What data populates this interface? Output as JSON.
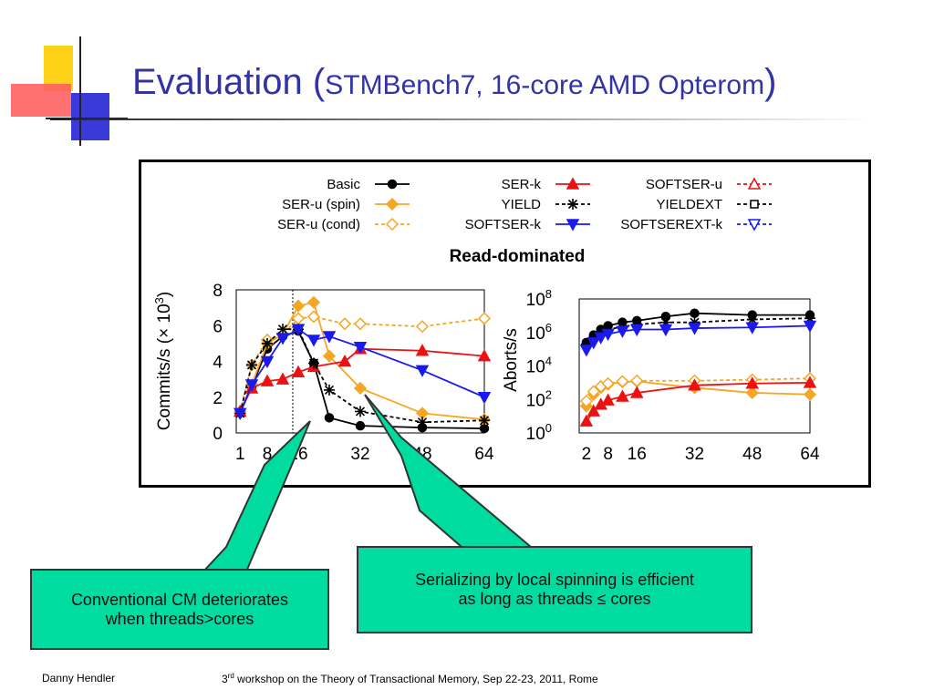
{
  "slide": {
    "title_main": "Evaluation (",
    "title_sub": "STMBench7, 16-core AMD Opterom",
    "title_close": ")"
  },
  "colors": {
    "basic": "#000000",
    "ser_u_spin": "#f5a623",
    "ser_u_cond": "#f5a623",
    "ser_k": "#ee1111",
    "yield": "#000000",
    "softser_k": "#1a1aee",
    "callout_fill": "#00dca0"
  },
  "legend": [
    {
      "label": "Basic",
      "marker": "circle",
      "color": "#000000",
      "dash": false,
      "open": false
    },
    {
      "label": "SER-u (spin)",
      "marker": "diamond",
      "color": "#f5a623",
      "dash": false,
      "open": false
    },
    {
      "label": "SER-u (cond)",
      "marker": "diamond",
      "color": "#f5a623",
      "dash": true,
      "open": true
    },
    {
      "label": "SER-k",
      "marker": "triangle",
      "color": "#ee1111",
      "dash": false,
      "open": false
    },
    {
      "label": "YIELD",
      "marker": "star",
      "color": "#000000",
      "dash": true,
      "open": false
    },
    {
      "label": "SOFTSER-k",
      "marker": "tridown",
      "color": "#1a1aee",
      "dash": false,
      "open": false
    },
    {
      "label": "SOFTSER-u",
      "marker": "triangle",
      "color": "#ee1111",
      "dash": true,
      "open": true
    },
    {
      "label": "YIELDEXT",
      "marker": "square",
      "color": "#000000",
      "dash": true,
      "open": true
    },
    {
      "label": "SOFTSEREXT-k",
      "marker": "tridown",
      "color": "#1a1aee",
      "dash": true,
      "open": true
    }
  ],
  "chart_title": "Read-dominated",
  "chart_data": [
    {
      "type": "line",
      "title": "Read-dominated",
      "xlabel": "",
      "ylabel": "Commits/s (× 10",
      "ylabel_exp": "3",
      "ylabel_close": ")",
      "x_ticks": [
        "1",
        "8",
        "16",
        "32",
        "48",
        "64"
      ],
      "y_ticks": [
        "0",
        "2",
        "4",
        "6",
        "8"
      ],
      "xlim": [
        0,
        64
      ],
      "ylim": [
        0,
        8
      ],
      "grid": false,
      "series": [
        {
          "name": "Basic",
          "x": [
            1,
            4,
            8,
            12,
            16,
            20,
            24,
            32,
            48,
            64
          ],
          "y": [
            1.1,
            2.6,
            4.7,
            5.4,
            5.7,
            3.9,
            0.85,
            0.4,
            0.3,
            0.25
          ]
        },
        {
          "name": "SER-u (spin)",
          "x": [
            1,
            4,
            8,
            12,
            16,
            20,
            24,
            32,
            48,
            64
          ],
          "y": [
            1.1,
            2.7,
            5.0,
            5.5,
            7.1,
            7.3,
            4.3,
            2.5,
            1.1,
            0.75
          ]
        },
        {
          "name": "SER-u (cond)",
          "x": [
            1,
            4,
            8,
            12,
            16,
            20,
            28,
            32,
            48,
            64
          ],
          "y": [
            1.2,
            3.8,
            5.2,
            5.5,
            6.4,
            6.5,
            6.1,
            6.1,
            5.95,
            6.4
          ]
        },
        {
          "name": "SER-k",
          "x": [
            1,
            4,
            8,
            12,
            16,
            20,
            28,
            32,
            48,
            64
          ],
          "y": [
            1.2,
            2.5,
            2.9,
            3.0,
            3.4,
            3.7,
            4.0,
            4.7,
            4.6,
            4.3
          ]
        },
        {
          "name": "YIELD",
          "x": [
            1,
            4,
            8,
            12,
            16,
            20,
            24,
            32,
            48,
            64
          ],
          "y": [
            1.1,
            3.8,
            5.0,
            5.8,
            5.8,
            3.9,
            2.4,
            1.2,
            0.6,
            0.7
          ]
        },
        {
          "name": "SOFTSER-k",
          "x": [
            1,
            4,
            8,
            12,
            16,
            20,
            24,
            32,
            48,
            64
          ],
          "y": [
            1.1,
            2.7,
            4.0,
            5.3,
            5.8,
            5.2,
            5.4,
            4.8,
            3.5,
            2.0
          ]
        }
      ]
    },
    {
      "type": "line",
      "title": "",
      "xlabel": "",
      "ylabel": "Aborts/s",
      "x_ticks": [
        "2",
        "8",
        "16",
        "32",
        "48",
        "64"
      ],
      "y_ticks": [
        "10^0",
        "10^2",
        "10^4",
        "10^6",
        "10^8"
      ],
      "xlim": [
        0,
        64
      ],
      "ylim": [
        1,
        100000000
      ],
      "y_scale": "log",
      "grid": false,
      "series": [
        {
          "name": "Basic",
          "x": [
            2,
            4,
            6,
            8,
            12,
            16,
            24,
            32,
            48,
            64
          ],
          "y": [
            250000,
            700000,
            1500000,
            2500000,
            4000000,
            5000000,
            9000000,
            14000000,
            11000000,
            11000000
          ]
        },
        {
          "name": "YIELD",
          "x": [
            2,
            4,
            6,
            8,
            12,
            16,
            24,
            32,
            48,
            64
          ],
          "y": [
            200000,
            500000,
            1000000,
            1500000,
            2200000,
            3000000,
            4000000,
            4000000,
            6000000,
            7000000
          ]
        },
        {
          "name": "SOFTSER-k",
          "x": [
            2,
            4,
            6,
            8,
            12,
            16,
            24,
            32,
            48,
            64
          ],
          "y": [
            90000,
            250000,
            500000,
            800000,
            1200000,
            1500000,
            1500000,
            1800000,
            2000000,
            2500000
          ]
        },
        {
          "name": "SER-u (spin)",
          "x": [
            2,
            4,
            6,
            8,
            12,
            16,
            32,
            48,
            64
          ],
          "y": [
            40,
            200,
            500,
            800,
            1100,
            1200,
            500,
            250,
            200
          ]
        },
        {
          "name": "SER-u (cond)",
          "x": [
            2,
            4,
            6,
            8,
            12,
            16,
            32,
            48,
            64
          ],
          "y": [
            80,
            300,
            600,
            900,
            1200,
            1300,
            1300,
            1500,
            1800
          ]
        },
        {
          "name": "SER-k",
          "x": [
            2,
            4,
            6,
            8,
            12,
            16,
            32,
            48,
            64
          ],
          "y": [
            5,
            20,
            50,
            90,
            150,
            250,
            700,
            900,
            1000
          ]
        }
      ]
    }
  ],
  "callouts": {
    "left_line1": "Conventional CM deteriorates",
    "left_line2": "when threads>cores",
    "right_line1": "Serializing by local spinning is efficient",
    "right_line2": "as long as threads ≤ cores"
  },
  "footer": {
    "author": "Danny Hendler",
    "event_prefix": "3",
    "event_sup": "rd",
    "event_rest": " workshop on the Theory of Transactional Memory, Sep 22-23, 2011, Rome"
  }
}
